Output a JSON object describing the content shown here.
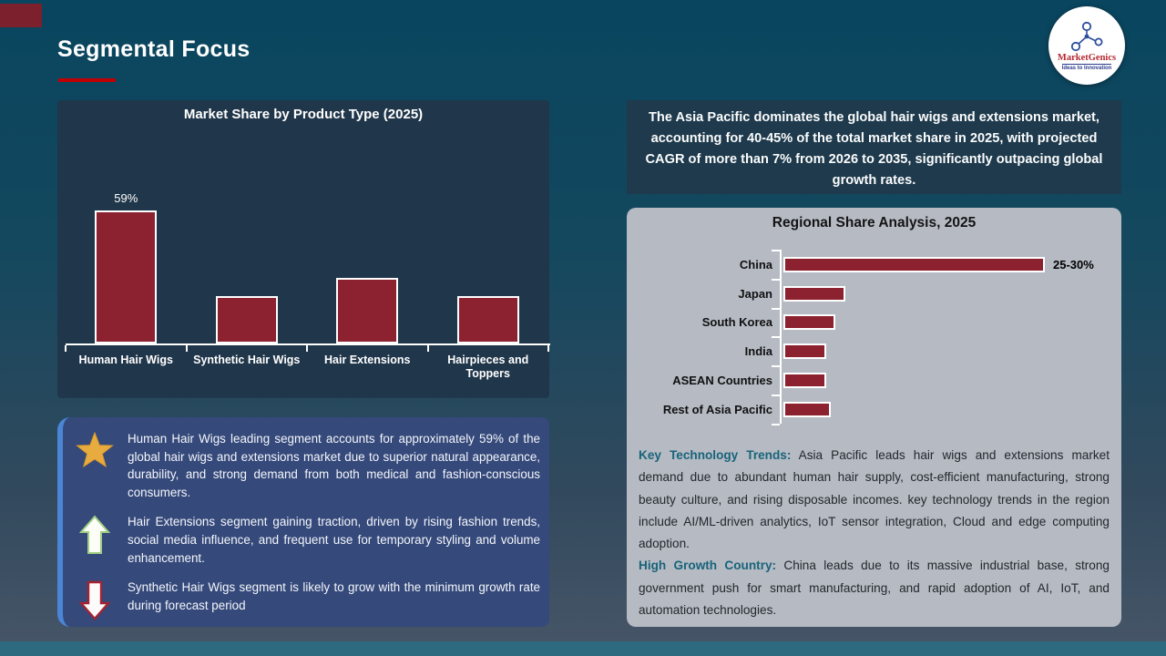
{
  "slide": {
    "title": "Segmental Focus"
  },
  "logo": {
    "brand": "MarketGenics",
    "tagline": "Ideas to Innovation"
  },
  "highlight_box": {
    "text": "The Asia Pacific dominates the global hair wigs and extensions market, accounting for 40-45% of the total market share in 2025, with projected CAGR of more than 7% from 2026 to 2035, significantly outpacing global growth rates."
  },
  "chart_data": [
    {
      "type": "bar",
      "orientation": "vertical",
      "title": "Market Share by Product Type (2025)",
      "categories": [
        "Human Hair Wigs",
        "Synthetic Hair Wigs",
        "Hair Extensions",
        "Hairpieces and Toppers"
      ],
      "values": [
        59,
        21,
        29,
        21
      ],
      "data_labels": [
        "59%",
        "",
        "",
        ""
      ],
      "xlabel": "",
      "ylabel": "",
      "ylim": [
        0,
        100
      ],
      "grid": false,
      "legend": false,
      "value_note": "Only the first bar is labeled (59%); remaining values estimated from bar heights."
    },
    {
      "type": "bar",
      "orientation": "horizontal",
      "title": "Regional Share Analysis, 2025",
      "categories": [
        "China",
        "Japan",
        "South Korea",
        "India",
        "ASEAN Countries",
        "Rest of Asia Pacific"
      ],
      "values": [
        27.5,
        6.5,
        5.5,
        4.5,
        4.5,
        5.0
      ],
      "data_labels": [
        "25-30%",
        "",
        "",
        "",
        "",
        ""
      ],
      "xlabel": "",
      "ylabel": "",
      "xlim": [
        0,
        30
      ],
      "grid": false,
      "legend": false,
      "value_note": "Only China is labeled (25-30%); remaining values estimated from bar lengths."
    }
  ],
  "insights": {
    "items": [
      {
        "icon": "star-icon",
        "text": "Human Hair Wigs leading segment accounts for approximately 59% of the global hair wigs and extensions market due to superior natural appearance, durability, and strong demand from both medical and fashion-conscious consumers."
      },
      {
        "icon": "arrow-up-icon",
        "text": "Hair Extensions segment gaining traction, driven by rising fashion trends, social media influence, and frequent use for temporary styling and volume enhancement."
      },
      {
        "icon": "arrow-down-icon",
        "text": "Synthetic Hair Wigs segment is likely to grow with the minimum growth rate during forecast period"
      }
    ]
  },
  "regional_notes": {
    "paragraphs": [
      {
        "label": "Key Technology Trends:",
        "text": " Asia Pacific leads hair wigs and extensions market demand due to abundant human hair supply, cost-efficient manufacturing, strong beauty culture, and rising disposable incomes. key technology trends in the region include AI/ML-driven analytics, IoT sensor integration, Cloud and edge computing adoption."
      },
      {
        "label": "High Growth Country:",
        "text": " China leads due to its massive industrial base, strong government push for smart manufacturing, and rapid adoption of AI, IoT, and automation technologies."
      }
    ]
  },
  "colors": {
    "bar_fill": "#8c2130",
    "bar_border": "#ffffff",
    "accent_red": "#c00000",
    "teal_label": "#19647a",
    "panel_dark": "#20364a",
    "panel_gray": "#b5bac3",
    "insights_blue": "#35497b",
    "insights_stripe": "#4b86d6"
  }
}
